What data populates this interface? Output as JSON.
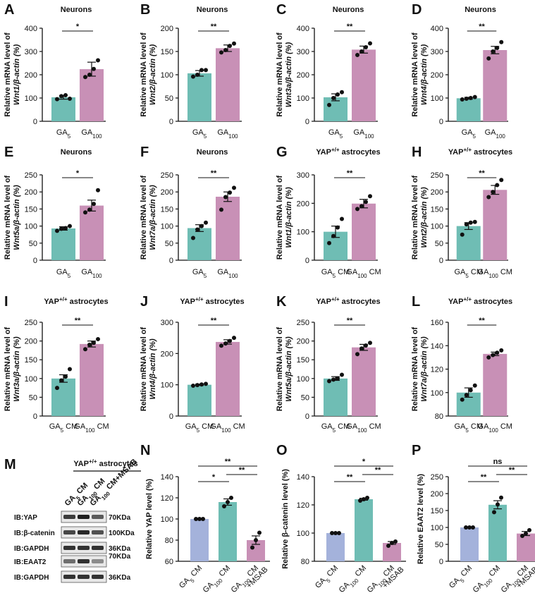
{
  "colors": {
    "teal": "#6fbdb4",
    "mauve": "#c890b6",
    "lavender": "#a4b2db",
    "axis": "#111111"
  },
  "chart_data": [
    {
      "type": "bar",
      "panel": "A",
      "title": "Neurons",
      "ylabel_top": "Relative mRNA level of",
      "ylabel_bottom": "Wnt1/β-actin (%)",
      "categories": [
        "GA5",
        "GA100"
      ],
      "values": [
        103,
        224
      ],
      "errors": [
        8,
        30
      ],
      "points": [
        [
          95,
          108,
          112,
          97
        ],
        [
          190,
          200,
          225,
          262
        ]
      ],
      "ylim": [
        0,
        400
      ],
      "yticks": [
        0,
        100,
        200,
        300,
        400
      ],
      "comparisons": [
        {
          "from": 0,
          "to": 1,
          "label": "*"
        }
      ]
    },
    {
      "type": "bar",
      "panel": "B",
      "title": "Neurons",
      "ylabel_top": "Relative mRNA level of",
      "ylabel_bottom": "Wnt2/β-actin (%)",
      "categories": [
        "GA5",
        "GA100"
      ],
      "values": [
        103,
        157
      ],
      "errors": [
        6,
        7
      ],
      "points": [
        [
          96,
          100,
          110,
          110
        ],
        [
          148,
          153,
          162,
          167
        ]
      ],
      "ylim": [
        0,
        200
      ],
      "yticks": [
        0,
        50,
        100,
        150,
        200
      ],
      "comparisons": [
        {
          "from": 0,
          "to": 1,
          "label": "**"
        }
      ]
    },
    {
      "type": "bar",
      "panel": "C",
      "title": "Neurons",
      "ylabel_top": "Relative mRNA level of",
      "ylabel_bottom": "Wnt3a/β-actin (%)",
      "categories": [
        "GA5",
        "GA100"
      ],
      "values": [
        103,
        308
      ],
      "errors": [
        15,
        15
      ],
      "points": [
        [
          70,
          100,
          115,
          125
        ],
        [
          285,
          300,
          318,
          335
        ]
      ],
      "ylim": [
        0,
        400
      ],
      "yticks": [
        0,
        100,
        200,
        300,
        400
      ],
      "comparisons": [
        {
          "from": 0,
          "to": 1,
          "label": "**"
        }
      ]
    },
    {
      "type": "bar",
      "panel": "D",
      "title": "Neurons",
      "ylabel_top": "Relative mRNA level of",
      "ylabel_bottom": "Wnt4/β-actin (%)",
      "categories": [
        "GA5",
        "GA100"
      ],
      "values": [
        99,
        306
      ],
      "errors": [
        4,
        16
      ],
      "points": [
        [
          94,
          97,
          100,
          104
        ],
        [
          270,
          300,
          315,
          340
        ]
      ],
      "ylim": [
        0,
        400
      ],
      "yticks": [
        0,
        100,
        200,
        300,
        400
      ],
      "comparisons": [
        {
          "from": 0,
          "to": 1,
          "label": "**"
        }
      ]
    },
    {
      "type": "bar",
      "panel": "E",
      "title": "Neurons",
      "ylabel_top": "Relative mRNA level of",
      "ylabel_bottom": "Wnt5a/β-actin (%)",
      "categories": [
        "GA5",
        "GA100"
      ],
      "values": [
        93,
        160
      ],
      "errors": [
        5,
        16
      ],
      "points": [
        [
          86,
          92,
          94,
          100
        ],
        [
          140,
          148,
          165,
          205
        ]
      ],
      "ylim": [
        0,
        250
      ],
      "yticks": [
        0,
        50,
        100,
        150,
        200,
        250
      ],
      "comparisons": [
        {
          "from": 0,
          "to": 1,
          "label": "*"
        }
      ]
    },
    {
      "type": "bar",
      "panel": "F",
      "title": "Neurons",
      "ylabel_top": "Relative mRNA level of",
      "ylabel_bottom": "Wnt7a/β-actin (%)",
      "categories": [
        "GA5",
        "GA100"
      ],
      "values": [
        94,
        186
      ],
      "errors": [
        10,
        14
      ],
      "points": [
        [
          65,
          90,
          100,
          110
        ],
        [
          148,
          185,
          198,
          212
        ]
      ],
      "ylim": [
        0,
        250
      ],
      "yticks": [
        0,
        50,
        100,
        150,
        200,
        250
      ],
      "comparisons": [
        {
          "from": 0,
          "to": 1,
          "label": "**"
        }
      ]
    },
    {
      "type": "bar",
      "panel": "G",
      "title": "YAP+/+ astrocytes",
      "ylabel_top": "Relative mRNA level of",
      "ylabel_bottom": "Wnt1/β-actin (%)",
      "categories": [
        "GA5 CM",
        "GA100 CM"
      ],
      "values": [
        100,
        199
      ],
      "errors": [
        20,
        15
      ],
      "points": [
        [
          60,
          85,
          115,
          145
        ],
        [
          180,
          190,
          205,
          225
        ]
      ],
      "ylim": [
        0,
        300
      ],
      "yticks": [
        0,
        100,
        200,
        300
      ],
      "comparisons": [
        {
          "from": 0,
          "to": 1,
          "label": "**"
        }
      ]
    },
    {
      "type": "bar",
      "panel": "H",
      "title": "YAP+/+ astrocytes",
      "ylabel_top": "Relative mRNA level of",
      "ylabel_bottom": "Wnt2/β-actin (%)",
      "categories": [
        "GA5 CM",
        "GA100 CM"
      ],
      "values": [
        100,
        206
      ],
      "errors": [
        10,
        13
      ],
      "points": [
        [
          75,
          105,
          110,
          112
        ],
        [
          185,
          200,
          220,
          235
        ]
      ],
      "ylim": [
        0,
        250
      ],
      "yticks": [
        0,
        50,
        100,
        150,
        200,
        250
      ],
      "comparisons": [
        {
          "from": 0,
          "to": 1,
          "label": "**"
        }
      ]
    },
    {
      "type": "bar",
      "panel": "I",
      "title": "YAP+/+ astrocytes",
      "ylabel_top": "Relative mRNA level of",
      "ylabel_bottom": "Wnt3a/β-actin (%)",
      "categories": [
        "GA5 CM",
        "GA100 CM"
      ],
      "values": [
        100,
        192
      ],
      "errors": [
        10,
        8
      ],
      "points": [
        [
          75,
          95,
          105,
          125
        ],
        [
          178,
          190,
          195,
          205
        ]
      ],
      "ylim": [
        0,
        250
      ],
      "yticks": [
        0,
        50,
        100,
        150,
        200,
        250
      ],
      "comparisons": [
        {
          "from": 0,
          "to": 1,
          "label": "**"
        }
      ]
    },
    {
      "type": "bar",
      "panel": "J",
      "title": "YAP+/+ astrocytes",
      "ylabel_top": "Relative mRNA level of",
      "ylabel_bottom": "Wnt4/β-actin (%)",
      "categories": [
        "GA5 CM",
        "GA100 CM"
      ],
      "values": [
        100,
        237
      ],
      "errors": [
        2,
        7
      ],
      "points": [
        [
          97,
          99,
          101,
          103
        ],
        [
          225,
          232,
          240,
          250
        ]
      ],
      "ylim": [
        0,
        300
      ],
      "yticks": [
        0,
        100,
        200,
        300
      ],
      "comparisons": [
        {
          "from": 0,
          "to": 1,
          "label": "**"
        }
      ]
    },
    {
      "type": "bar",
      "panel": "K",
      "title": "YAP+/+ astrocytes",
      "ylabel_top": "Relative mRNA level of",
      "ylabel_bottom": "Wnt5a/β-actin (%)",
      "categories": [
        "GA5 CM",
        "GA100 CM"
      ],
      "values": [
        100,
        183
      ],
      "errors": [
        5,
        8
      ],
      "points": [
        [
          93,
          97,
          100,
          110
        ],
        [
          165,
          180,
          188,
          195
        ]
      ],
      "ylim": [
        0,
        250
      ],
      "yticks": [
        0,
        50,
        100,
        150,
        200,
        250
      ],
      "comparisons": [
        {
          "from": 0,
          "to": 1,
          "label": "**"
        }
      ]
    },
    {
      "type": "bar",
      "panel": "L",
      "title": "YAP+/+ astrocytes",
      "ylabel_top": "Relative mRNA level of",
      "ylabel_bottom": "Wnt7a/β-actin (%)",
      "categories": [
        "GA5 CM",
        "GA100 CM"
      ],
      "values": [
        100,
        133
      ],
      "errors": [
        4,
        1.5
      ],
      "points": [
        [
          94,
          98,
          102,
          106
        ],
        [
          130,
          132,
          134,
          136
        ]
      ],
      "ylim": [
        80,
        160
      ],
      "yticks": [
        80,
        100,
        120,
        140,
        160
      ],
      "comparisons": [
        {
          "from": 0,
          "to": 1,
          "label": "**"
        }
      ]
    },
    {
      "type": "bar",
      "panel": "N",
      "title": "",
      "ylabel_top": "",
      "ylabel_bottom": "Relative YAP level (%)",
      "categories": [
        "GA5 CM",
        "GA100 CM",
        "GA100 CM +MSAB"
      ],
      "values": [
        100,
        116,
        80
      ],
      "errors": [
        0,
        3,
        4
      ],
      "points": [
        [
          100,
          100,
          100
        ],
        [
          112,
          116,
          120
        ],
        [
          73,
          80,
          87
        ]
      ],
      "ylim": [
        60,
        140
      ],
      "yticks": [
        60,
        80,
        100,
        120,
        140
      ],
      "multicolor": true,
      "comparisons": [
        {
          "from": 0,
          "to": 1,
          "label": "*"
        },
        {
          "from": 1,
          "to": 2,
          "label": "**"
        },
        {
          "from": 0,
          "to": 2,
          "label": "**"
        }
      ]
    },
    {
      "type": "bar",
      "panel": "O",
      "title": "",
      "ylabel_top": "",
      "ylabel_bottom": "Relative β-catenin level (%)",
      "categories": [
        "GA5 CM",
        "GA100 CM",
        "GA100 CM +MSAB"
      ],
      "values": [
        100,
        124,
        93
      ],
      "errors": [
        0,
        0.7,
        1
      ],
      "points": [
        [
          100,
          100,
          100
        ],
        [
          123,
          124,
          125
        ],
        [
          91,
          93,
          94
        ]
      ],
      "ylim": [
        80,
        140
      ],
      "yticks": [
        80,
        100,
        120,
        140
      ],
      "multicolor": true,
      "comparisons": [
        {
          "from": 0,
          "to": 1,
          "label": "**"
        },
        {
          "from": 1,
          "to": 2,
          "label": "**"
        },
        {
          "from": 0,
          "to": 2,
          "label": "*"
        }
      ]
    },
    {
      "type": "bar",
      "panel": "P",
      "title": "",
      "ylabel_top": "",
      "ylabel_bottom": "Relative EAAT2 level (%)",
      "categories": [
        "GA5 CM",
        "GA100 CM",
        "GA100 CM +MSAB"
      ],
      "values": [
        100,
        167,
        82
      ],
      "errors": [
        0,
        12,
        6
      ],
      "points": [
        [
          100,
          100,
          100
        ],
        [
          145,
          168,
          188
        ],
        [
          75,
          82,
          92
        ]
      ],
      "ylim": [
        0,
        250
      ],
      "yticks": [
        0,
        50,
        100,
        150,
        200,
        250
      ],
      "multicolor": true,
      "comparisons": [
        {
          "from": 0,
          "to": 1,
          "label": "**"
        },
        {
          "from": 1,
          "to": 2,
          "label": "**"
        },
        {
          "from": 0,
          "to": 2,
          "label": "ns"
        }
      ]
    }
  ],
  "western_blot": {
    "panel_label": "M",
    "header": "YAP+/+ astrocytes",
    "lanes": [
      "GA5 CM",
      "GA100 CM",
      "GA100 CM+MSAB"
    ],
    "rows": [
      {
        "label": "IB:YAP",
        "marker": "70KDa",
        "intensity": [
          0.85,
          1.0,
          0.7
        ]
      },
      {
        "label": "IB:β-catenin",
        "marker": "100KDa",
        "intensity": [
          0.8,
          0.95,
          0.75
        ]
      },
      {
        "label": "IB:GAPDH",
        "marker": "36KDa",
        "intensity": [
          0.9,
          0.9,
          0.9
        ]
      },
      {
        "label": "IB:EAAT2",
        "marker": "70KDa",
        "intensity": [
          0.6,
          0.9,
          0.45
        ]
      },
      {
        "label": "IB:GAPDH",
        "marker": "36KDa",
        "intensity": [
          0.9,
          0.9,
          0.9
        ]
      }
    ]
  }
}
